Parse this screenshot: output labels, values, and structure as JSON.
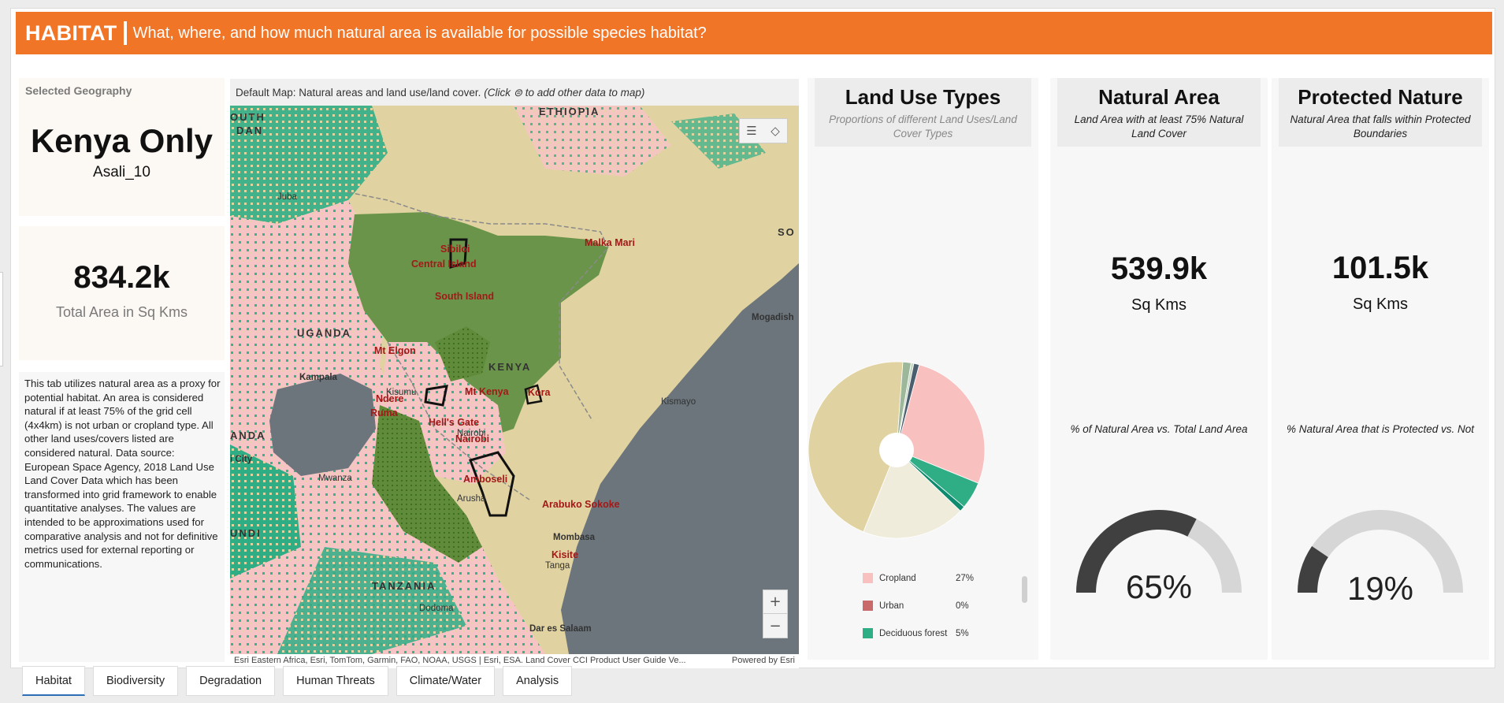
{
  "header": {
    "brand": "HABITAT",
    "subtitle": "What, where, and how much natural area is available for possible species habitat?"
  },
  "geography": {
    "label": "Selected Geography",
    "name": "Kenya Only",
    "sub": "Asali_10"
  },
  "total_area": {
    "value": "834.2k",
    "label": "Total Area in Sq Kms"
  },
  "description": "This tab utilizes natural area as a proxy for potential habitat. An area is considered natural if at least 75% of the grid cell (4x4km) is not urban or cropland type. All other land uses/covers listed are considered natural. Data source: European Space Agency, 2018 Land Use Land Cover Data which has been transformed into grid framework to enable quantitative analyses. The values are intended to be approximations used for comparative analysis and not for definitive metrics used for external reporting or communications.",
  "map": {
    "header_prefix": "Default Map: Natural areas and land use/land cover.",
    "header_hint": "(Click ⊜ to add other data to map)",
    "attribution": "Esri Eastern Africa, Esri, TomTom, Garmin, FAO, NOAA, USGS | Esri, ESA. Land Cover CCI Product User Guide Ve...",
    "powered": "Powered by Esri",
    "zoom_in": "+",
    "zoom_out": "−",
    "labels_country": [
      "ETHIOPIA",
      "UGANDA",
      "KENYA",
      "TANZANIA",
      "OUTH",
      "DAN",
      "SO",
      "ANDA",
      "UNDI"
    ],
    "labels_city": [
      "Juba",
      "Kampala",
      "Kisumu",
      "Nairobi",
      "Mwanza",
      "Arusha",
      "Mombasa",
      "Tanga",
      "Dodoma",
      "Dar es Salaam",
      "Kismayo",
      "Mogadish",
      "i City"
    ],
    "labels_protected": [
      "Sibiloi",
      "Central Island",
      "South Island",
      "Malka Mari",
      "Mt Elgon",
      "Mt Kenya",
      "Ndere",
      "Ruma",
      "Hell's Gate",
      "Nairobi",
      "Amboseli",
      "Arabuko Sokoke",
      "Kisite",
      "Kora"
    ]
  },
  "land_use": {
    "title": "Land Use Types",
    "subtitle": "Proportions of different Land Uses/Land Cover Types",
    "legend": [
      {
        "name": "Cropland",
        "pct": "27%",
        "color": "#f9c0c0"
      },
      {
        "name": "Urban",
        "pct": "0%",
        "color": "#c96b6b"
      },
      {
        "name": "Deciduous forest",
        "pct": "5%",
        "color": "#2fae86"
      }
    ]
  },
  "chart_data": {
    "type": "pie",
    "slices": [
      {
        "name": "Cropland",
        "value": 27,
        "color": "#f9c0c0"
      },
      {
        "name": "Urban",
        "value": 0,
        "color": "#c96b6b"
      },
      {
        "name": "Deciduous forest",
        "value": 5,
        "color": "#2fae86"
      },
      {
        "value": 1,
        "color": "#0e8a6e"
      },
      {
        "value": 19,
        "color": "#efecdc"
      },
      {
        "value": 45,
        "color": "#e1d3a1"
      },
      {
        "value": 1.5,
        "color": "#9db79a"
      },
      {
        "value": 0.5,
        "color": "#c7d7c5"
      },
      {
        "value": 1,
        "color": "#4a5e6e"
      }
    ]
  },
  "natural_area": {
    "title": "Natural Area",
    "subtitle": "Land Area with at least 75% Natural Land Cover",
    "value": "539.9k",
    "unit": "Sq Kms",
    "gauge_label": "% of Natural Area vs. Total Land Area",
    "pct": "65%",
    "fraction": 0.65
  },
  "protected_nature": {
    "title": "Protected Nature",
    "subtitle": "Natural Area that falls within Protected Boundaries",
    "value": "101.5k",
    "unit": "Sq Kms",
    "gauge_label": "% Natural Area that is Protected vs. Not",
    "pct": "19%",
    "fraction": 0.19
  },
  "tabs": [
    "Habitat",
    "Biodiversity",
    "Degradation",
    "Human Threats",
    "Climate/Water",
    "Analysis"
  ],
  "colors": {
    "accent": "#f07527",
    "gauge_fill": "#404040",
    "gauge_track": "#d6d6d6",
    "tab_active": "#2d6fb7"
  }
}
